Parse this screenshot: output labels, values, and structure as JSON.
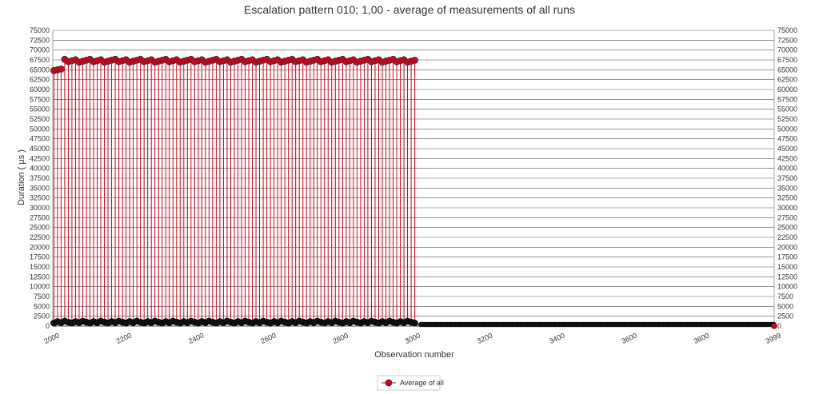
{
  "chart_data": {
    "type": "line",
    "title": "Escalation pattern 010; 1,00 - average of measurements of all runs",
    "xlabel": "Observation number",
    "ylabel": "Duration ( µs )",
    "xlim": [
      2000,
      3999
    ],
    "ylim": [
      0,
      75000
    ],
    "x_ticks": [
      "2000",
      "2200",
      "2400",
      "2600",
      "2800",
      "3000",
      "3200",
      "3400",
      "3600",
      "3800",
      "3999"
    ],
    "x_tick_values": [
      2000,
      2200,
      2400,
      2600,
      2800,
      3000,
      3200,
      3400,
      3600,
      3800,
      3999
    ],
    "y_ticks": [
      "0",
      "2500",
      "5000",
      "7500",
      "10000",
      "12500",
      "15000",
      "17500",
      "20000",
      "22500",
      "25000",
      "27500",
      "30000",
      "32500",
      "35000",
      "37500",
      "40000",
      "42500",
      "45000",
      "47500",
      "50000",
      "52500",
      "55000",
      "57500",
      "60000",
      "62500",
      "65000",
      "67500",
      "70000",
      "72500",
      "75000"
    ],
    "grid": true,
    "legend_position": "bottom-center",
    "series": [
      {
        "name": "Average of all",
        "color": "#d0021b",
        "marker_fill_high": "#d0021b",
        "marker_fill_low": "#111111",
        "phase1": {
          "x_start": 2003,
          "x_end": 3010,
          "step": 10,
          "low": 1000,
          "high_start": [
            64800,
            65000,
            65200
          ],
          "high_typical": 67300
        },
        "phase2": {
          "x_start": 3020,
          "x_end": 3999,
          "value": 400,
          "last_value": 0
        }
      }
    ]
  }
}
